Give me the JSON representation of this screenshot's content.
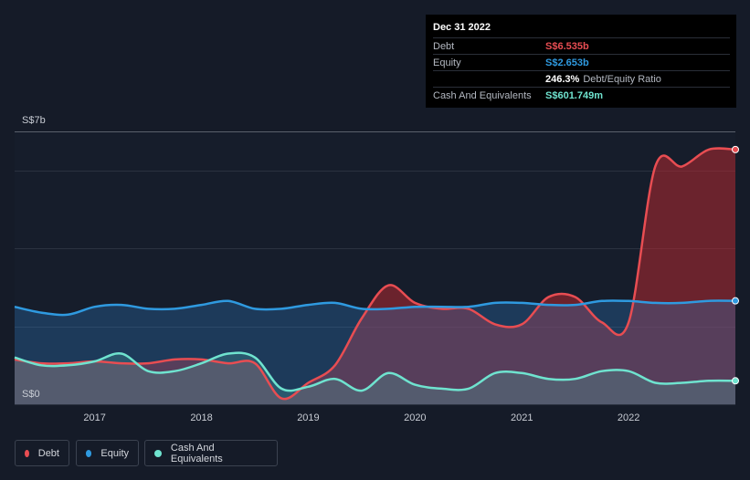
{
  "tooltip": {
    "date": "Dec 31 2022",
    "rows": [
      {
        "label": "Debt",
        "value": "S$6.535b",
        "suffix": "",
        "color": "#e84d52"
      },
      {
        "label": "Equity",
        "value": "S$2.653b",
        "suffix": "",
        "color": "#2f9ae0"
      },
      {
        "label": "",
        "value": "246.3%",
        "suffix": "Debt/Equity Ratio",
        "color": "#ffffff"
      },
      {
        "label": "Cash And Equivalents",
        "value": "S$601.749m",
        "suffix": "",
        "color": "#6fe3cf"
      }
    ]
  },
  "legend": [
    {
      "label": "Debt",
      "color": "#e84d52"
    },
    {
      "label": "Equity",
      "color": "#2f9ae0"
    },
    {
      "label": "Cash And Equivalents",
      "color": "#6fe3cf"
    }
  ],
  "chart_data": {
    "type": "area",
    "y_unit": "S$b",
    "ylim": [
      0,
      7
    ],
    "y_tick_labels": [
      "S$0",
      "S$7b"
    ],
    "x_tick_labels": [
      "2017",
      "2018",
      "2019",
      "2020",
      "2021",
      "2022"
    ],
    "xlim": [
      2016.25,
      2023.0
    ],
    "grid": true,
    "legend_position": "bottom-left",
    "series": [
      {
        "name": "Debt",
        "color": "#e84d52",
        "points": [
          [
            2016.25,
            1.15
          ],
          [
            2016.5,
            1.05
          ],
          [
            2016.75,
            1.05
          ],
          [
            2017.0,
            1.1
          ],
          [
            2017.25,
            1.05
          ],
          [
            2017.5,
            1.05
          ],
          [
            2017.75,
            1.15
          ],
          [
            2018.0,
            1.15
          ],
          [
            2018.25,
            1.05
          ],
          [
            2018.5,
            1.05
          ],
          [
            2018.75,
            0.15
          ],
          [
            2019.0,
            0.55
          ],
          [
            2019.25,
            1.0
          ],
          [
            2019.5,
            2.2
          ],
          [
            2019.75,
            3.05
          ],
          [
            2020.0,
            2.6
          ],
          [
            2020.25,
            2.45
          ],
          [
            2020.5,
            2.45
          ],
          [
            2020.75,
            2.05
          ],
          [
            2021.0,
            2.05
          ],
          [
            2021.25,
            2.75
          ],
          [
            2021.5,
            2.75
          ],
          [
            2021.75,
            2.1
          ],
          [
            2022.0,
            2.1
          ],
          [
            2022.25,
            6.1
          ],
          [
            2022.5,
            6.1
          ],
          [
            2022.75,
            6.535
          ],
          [
            2023.0,
            6.535
          ]
        ]
      },
      {
        "name": "Equity",
        "color": "#2f9ae0",
        "points": [
          [
            2016.25,
            2.5
          ],
          [
            2016.5,
            2.35
          ],
          [
            2016.75,
            2.3
          ],
          [
            2017.0,
            2.5
          ],
          [
            2017.25,
            2.55
          ],
          [
            2017.5,
            2.45
          ],
          [
            2017.75,
            2.45
          ],
          [
            2018.0,
            2.55
          ],
          [
            2018.25,
            2.65
          ],
          [
            2018.5,
            2.45
          ],
          [
            2018.75,
            2.45
          ],
          [
            2019.0,
            2.55
          ],
          [
            2019.25,
            2.6
          ],
          [
            2019.5,
            2.45
          ],
          [
            2019.75,
            2.45
          ],
          [
            2020.0,
            2.5
          ],
          [
            2020.25,
            2.5
          ],
          [
            2020.5,
            2.5
          ],
          [
            2020.75,
            2.6
          ],
          [
            2021.0,
            2.6
          ],
          [
            2021.25,
            2.55
          ],
          [
            2021.5,
            2.55
          ],
          [
            2021.75,
            2.65
          ],
          [
            2022.0,
            2.65
          ],
          [
            2022.25,
            2.6
          ],
          [
            2022.5,
            2.6
          ],
          [
            2022.75,
            2.653
          ],
          [
            2023.0,
            2.653
          ]
        ]
      },
      {
        "name": "Cash And Equivalents",
        "color": "#6fe3cf",
        "points": [
          [
            2016.25,
            1.2
          ],
          [
            2016.5,
            1.0
          ],
          [
            2016.75,
            1.0
          ],
          [
            2017.0,
            1.1
          ],
          [
            2017.25,
            1.3
          ],
          [
            2017.5,
            0.85
          ],
          [
            2017.75,
            0.85
          ],
          [
            2018.0,
            1.05
          ],
          [
            2018.25,
            1.3
          ],
          [
            2018.5,
            1.2
          ],
          [
            2018.75,
            0.4
          ],
          [
            2019.0,
            0.45
          ],
          [
            2019.25,
            0.65
          ],
          [
            2019.5,
            0.35
          ],
          [
            2019.75,
            0.8
          ],
          [
            2020.0,
            0.5
          ],
          [
            2020.25,
            0.4
          ],
          [
            2020.5,
            0.4
          ],
          [
            2020.75,
            0.8
          ],
          [
            2021.0,
            0.8
          ],
          [
            2021.25,
            0.65
          ],
          [
            2021.5,
            0.65
          ],
          [
            2021.75,
            0.85
          ],
          [
            2022.0,
            0.85
          ],
          [
            2022.25,
            0.55
          ],
          [
            2022.5,
            0.55
          ],
          [
            2022.75,
            0.6017
          ],
          [
            2023.0,
            0.6017
          ]
        ]
      }
    ]
  }
}
